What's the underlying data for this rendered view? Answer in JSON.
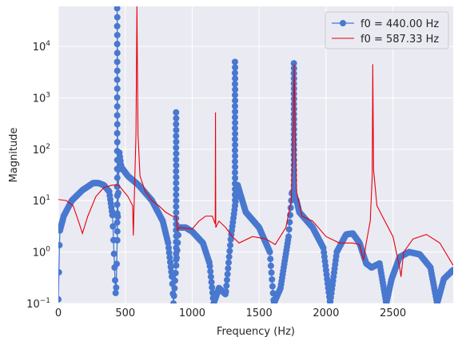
{
  "chart_data": {
    "type": "line",
    "title": "",
    "xlabel": "Frequency (Hz)",
    "ylabel": "Magnitude",
    "xlim": [
      0,
      2950
    ],
    "ylim": [
      0.1,
      60000
    ],
    "yscale": "log",
    "grid": true,
    "legend_position": "top-right",
    "x_ticks": [
      0,
      500,
      1000,
      1500,
      2000,
      2500
    ],
    "x_tick_labels": [
      "0",
      "500",
      "1000",
      "1500",
      "2000",
      "2500"
    ],
    "y_ticks": [
      0.1,
      1,
      10,
      100,
      1000,
      10000
    ],
    "y_tick_labels": [
      {
        "base": "10",
        "exp": "−1"
      },
      {
        "base": "10",
        "exp": "0"
      },
      {
        "base": "10",
        "exp": "1"
      },
      {
        "base": "10",
        "exp": "2"
      },
      {
        "base": "10",
        "exp": "3"
      },
      {
        "base": "10",
        "exp": "4"
      }
    ],
    "series": [
      {
        "name": "f0 = 440.00 Hz",
        "style": "line-marker",
        "color": "#4878cf",
        "peaks": [
          {
            "x": 440,
            "y": 55000
          },
          {
            "x": 880,
            "y": 520
          },
          {
            "x": 1320,
            "y": 5000
          },
          {
            "x": 1760,
            "y": 4700
          }
        ],
        "envelope": [
          [
            0,
            0.12
          ],
          [
            10,
            2.5
          ],
          [
            40,
            5
          ],
          [
            100,
            10
          ],
          [
            180,
            16
          ],
          [
            260,
            22
          ],
          [
            300,
            22
          ],
          [
            340,
            20
          ],
          [
            380,
            15
          ],
          [
            405,
            5
          ],
          [
            420,
            0.5
          ],
          [
            430,
            0.12
          ],
          [
            455,
            90
          ],
          [
            470,
            45
          ],
          [
            520,
            30
          ],
          [
            600,
            20
          ],
          [
            700,
            10
          ],
          [
            780,
            4
          ],
          [
            820,
            1.5
          ],
          [
            850,
            0.3
          ],
          [
            860,
            0.1
          ],
          [
            900,
            3
          ],
          [
            950,
            3
          ],
          [
            1000,
            2.5
          ],
          [
            1080,
            1.5
          ],
          [
            1130,
            0.6
          ],
          [
            1160,
            0.1
          ],
          [
            1200,
            0.2
          ],
          [
            1250,
            0.15
          ],
          [
            1290,
            2
          ],
          [
            1340,
            20
          ],
          [
            1400,
            6
          ],
          [
            1500,
            3
          ],
          [
            1580,
            1
          ],
          [
            1610,
            0.1
          ],
          [
            1660,
            0.2
          ],
          [
            1720,
            2
          ],
          [
            1745,
            15
          ],
          [
            1780,
            10
          ],
          [
            1800,
            6
          ],
          [
            1900,
            3
          ],
          [
            1980,
            1.2
          ],
          [
            2030,
            0.1
          ],
          [
            2080,
            1
          ],
          [
            2150,
            2.2
          ],
          [
            2200,
            2.3
          ],
          [
            2250,
            1.5
          ],
          [
            2300,
            0.6
          ],
          [
            2340,
            0.5
          ],
          [
            2400,
            0.6
          ],
          [
            2450,
            0.1
          ],
          [
            2490,
            0.3
          ],
          [
            2550,
            0.8
          ],
          [
            2620,
            1
          ],
          [
            2700,
            0.9
          ],
          [
            2780,
            0.5
          ],
          [
            2830,
            0.1
          ],
          [
            2880,
            0.3
          ],
          [
            2950,
            0.45
          ]
        ]
      },
      {
        "name": "f0 = 587.33 Hz",
        "style": "line",
        "color": "#e8000b",
        "points": [
          [
            0,
            10.5
          ],
          [
            60,
            10
          ],
          [
            110,
            8
          ],
          [
            150,
            4
          ],
          [
            180,
            2.3
          ],
          [
            220,
            5
          ],
          [
            280,
            12
          ],
          [
            340,
            18
          ],
          [
            400,
            20
          ],
          [
            450,
            20
          ],
          [
            520,
            12
          ],
          [
            555,
            8
          ],
          [
            560,
            2.1
          ],
          [
            570,
            20
          ],
          [
            580,
            200
          ],
          [
            587,
            60000
          ],
          [
            595,
            200
          ],
          [
            610,
            30
          ],
          [
            650,
            15
          ],
          [
            700,
            10
          ],
          [
            750,
            8
          ],
          [
            800,
            6
          ],
          [
            850,
            5
          ],
          [
            880,
            5
          ],
          [
            890,
            2.6
          ],
          [
            900,
            3
          ],
          [
            1000,
            2.8
          ],
          [
            1050,
            4
          ],
          [
            1100,
            5
          ],
          [
            1150,
            5
          ],
          [
            1172,
            3.5
          ],
          [
            1174,
            520
          ],
          [
            1176,
            3
          ],
          [
            1200,
            4
          ],
          [
            1250,
            3
          ],
          [
            1300,
            2
          ],
          [
            1350,
            1.5
          ],
          [
            1450,
            2
          ],
          [
            1550,
            1.8
          ],
          [
            1620,
            1.4
          ],
          [
            1700,
            3
          ],
          [
            1740,
            10
          ],
          [
            1755,
            300
          ],
          [
            1762,
            4500
          ],
          [
            1768,
            300
          ],
          [
            1780,
            15
          ],
          [
            1820,
            5
          ],
          [
            1900,
            4
          ],
          [
            2000,
            2
          ],
          [
            2100,
            1.5
          ],
          [
            2200,
            1.5
          ],
          [
            2250,
            1.4
          ],
          [
            2280,
            0.7
          ],
          [
            2300,
            1.5
          ],
          [
            2330,
            4
          ],
          [
            2345,
            30
          ],
          [
            2349,
            4500
          ],
          [
            2355,
            40
          ],
          [
            2380,
            8
          ],
          [
            2420,
            5
          ],
          [
            2500,
            2
          ],
          [
            2550,
            0.5
          ],
          [
            2560,
            0.33
          ],
          [
            2580,
            1
          ],
          [
            2650,
            1.8
          ],
          [
            2750,
            2.2
          ],
          [
            2850,
            1.5
          ],
          [
            2950,
            0.55
          ]
        ]
      }
    ]
  }
}
